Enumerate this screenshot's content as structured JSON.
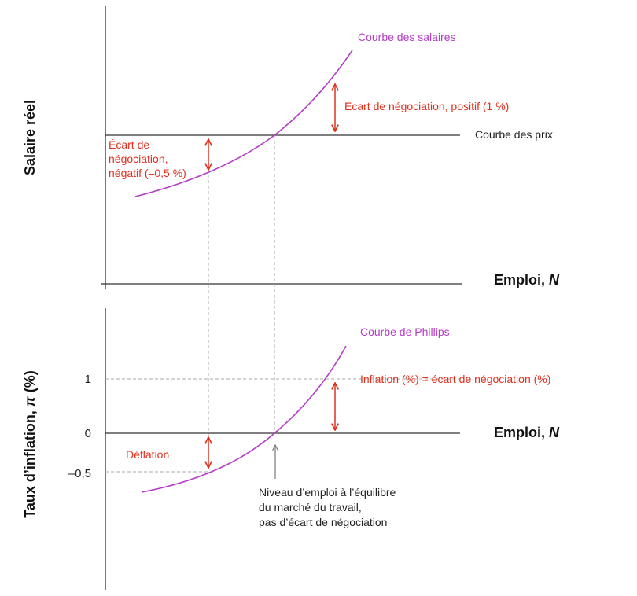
{
  "top_panel": {
    "y_axis_label": "Salaire réel",
    "x_axis_label_text": "Emploi, ",
    "x_axis_label_var": "N",
    "wage_curve_label": "Courbe des salaires",
    "price_curve_label": "Courbe des prix",
    "positive_gap_label": "Écart de négociation, positif (1 %)",
    "negative_gap_label": [
      "Écart de",
      "négociation,",
      "négatif (–0,5 %)"
    ]
  },
  "bottom_panel": {
    "y_axis_label_text": "Taux d’inflation, ",
    "y_axis_label_var": "π",
    "y_axis_label_unit": " (%)",
    "x_axis_label_text": "Emploi, ",
    "x_axis_label_var": "N",
    "phillips_curve_label": "Courbe de Phillips",
    "inflation_label": "Inflation (%) = écart de négociation (%)",
    "deflation_label": "Déflation",
    "ticks": [
      "1",
      "0",
      "–0,5"
    ],
    "equilibrium_note": [
      "Niveau d’emploi à l’équilibre",
      "du marché du travail,",
      "pas d’écart de négociation"
    ]
  },
  "colors": {
    "curve": "#b43cc6",
    "gap_arrows": "#e0301e",
    "axes": "#333333",
    "guides": "#a8a8a8"
  }
}
